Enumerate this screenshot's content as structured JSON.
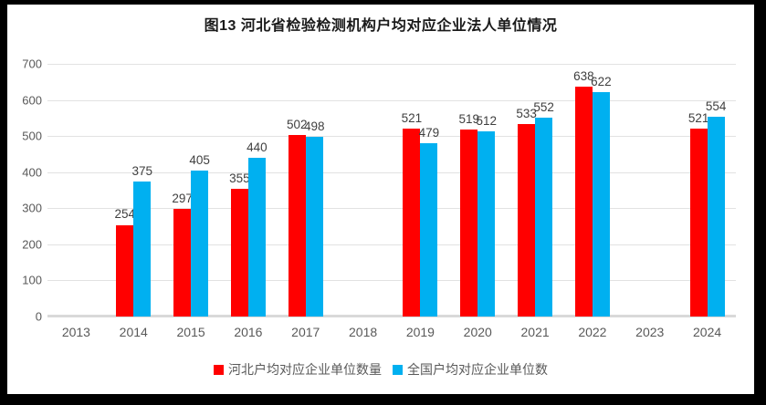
{
  "chart_data": {
    "type": "bar",
    "title": "图13 河北省检验检测机构户均对应企业法人单位情况",
    "categories": [
      "2013",
      "2014",
      "2015",
      "2016",
      "2017",
      "2018",
      "2019",
      "2020",
      "2021",
      "2022",
      "2023",
      "2024"
    ],
    "series": [
      {
        "name": "河北户均对应企业单位数量",
        "color": "#ff0000",
        "values": [
          null,
          254,
          297,
          355,
          502,
          null,
          521,
          519,
          533,
          638,
          null,
          521
        ]
      },
      {
        "name": "全国户均对应企业单位数",
        "color": "#00b0f0",
        "values": [
          null,
          375,
          405,
          440,
          498,
          null,
          479,
          512,
          552,
          622,
          null,
          554
        ]
      }
    ],
    "xlabel": "",
    "ylabel": "",
    "ylim": [
      0,
      700
    ],
    "yticks": [
      0,
      100,
      200,
      300,
      400,
      500,
      600,
      700
    ],
    "grid": "horizontal",
    "legend_position": "bottom",
    "data_labels": "shown"
  },
  "style_colors": {
    "background_frame": "#000000",
    "plot_background": "#ffffff",
    "gridline": "#e2e2e2",
    "axis_line": "#d9d9d9",
    "tick_text": "#595959",
    "data_label_text": "#3f3f3f",
    "title_text": "#1a1a1a"
  }
}
